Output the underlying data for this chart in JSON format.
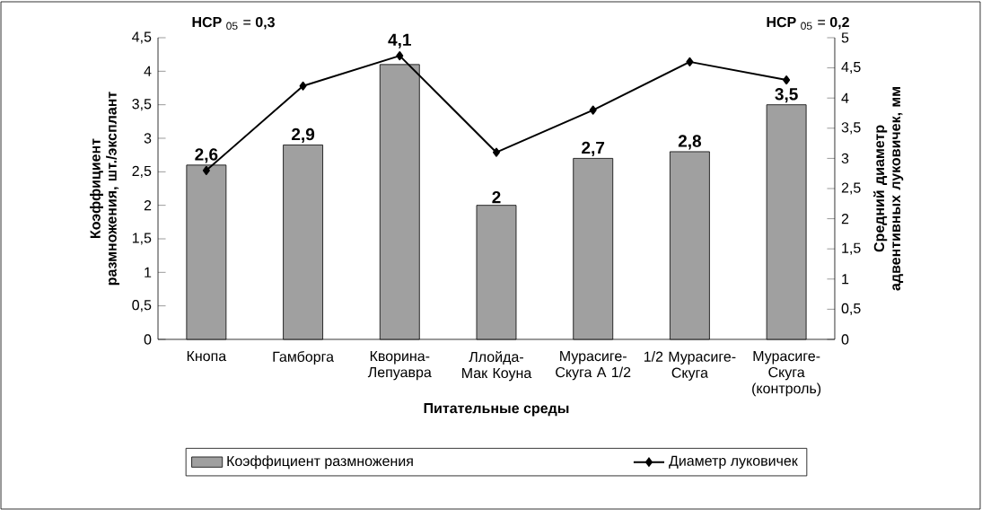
{
  "chart_data": {
    "type": "bar",
    "categories": [
      "Кнопа",
      "Гамборга",
      "Кворина-Лепуавра",
      "Ллойда-Мак Коуна",
      "Мурасиге-Скуга А 1/2",
      "1/2 Мурасиге-Скуга",
      "Мурасиге-Скуга (контроль)"
    ],
    "xlabel": "Питательные среды",
    "ylabel": "Коэффициент размножения, шт./эксплант",
    "y2label": "Средний диаметр адвентивных луковичек, мм",
    "ylim": [
      0,
      4.5
    ],
    "yticks": [
      0,
      {
        "value": 0.5,
        "label": "0,5"
      },
      1,
      {
        "value": 1.5,
        "label": "1,5"
      },
      2,
      {
        "value": 2.5,
        "label": "2,5"
      },
      3,
      {
        "value": 3.5,
        "label": "3,5"
      },
      4,
      {
        "value": 4.5,
        "label": "4,5"
      }
    ],
    "y2lim": [
      0,
      5
    ],
    "y2ticks": [
      0,
      {
        "value": 0.5,
        "label": "0,5"
      },
      1,
      {
        "value": 1.5,
        "label": "1,5"
      },
      2,
      {
        "value": 2.5,
        "label": "2,5"
      },
      3,
      {
        "value": 3.5,
        "label": "3,5"
      },
      4,
      {
        "value": 4.5,
        "label": "4,5"
      },
      5
    ],
    "legend": "bottom",
    "grid": false,
    "annotations": [
      "**НСР** $_{05}$ = **0,3**",
      "**НСР** $_{05}$ = **0,2**"
    ],
    "series": [
      {
        "name": "Коэффициент размножения",
        "type": "bar",
        "color": "#a0a0a0",
        "values": [
          2.6,
          2.9,
          4.1,
          2,
          2.7,
          2.8,
          3.5
        ],
        "value_labels": [
          "2,6",
          "2,9",
          "4,1",
          "2",
          "2,7",
          "2,8",
          "3,5"
        ]
      },
      {
        "name": "Диаметр луковичек",
        "type": "line",
        "axis": "y2",
        "color": "#000000",
        "marker": "diamond",
        "line_style": "solid",
        "values": [
          2.8,
          4.2,
          4.7,
          3.1,
          3.8,
          4.6,
          4.3
        ]
      }
    ]
  }
}
